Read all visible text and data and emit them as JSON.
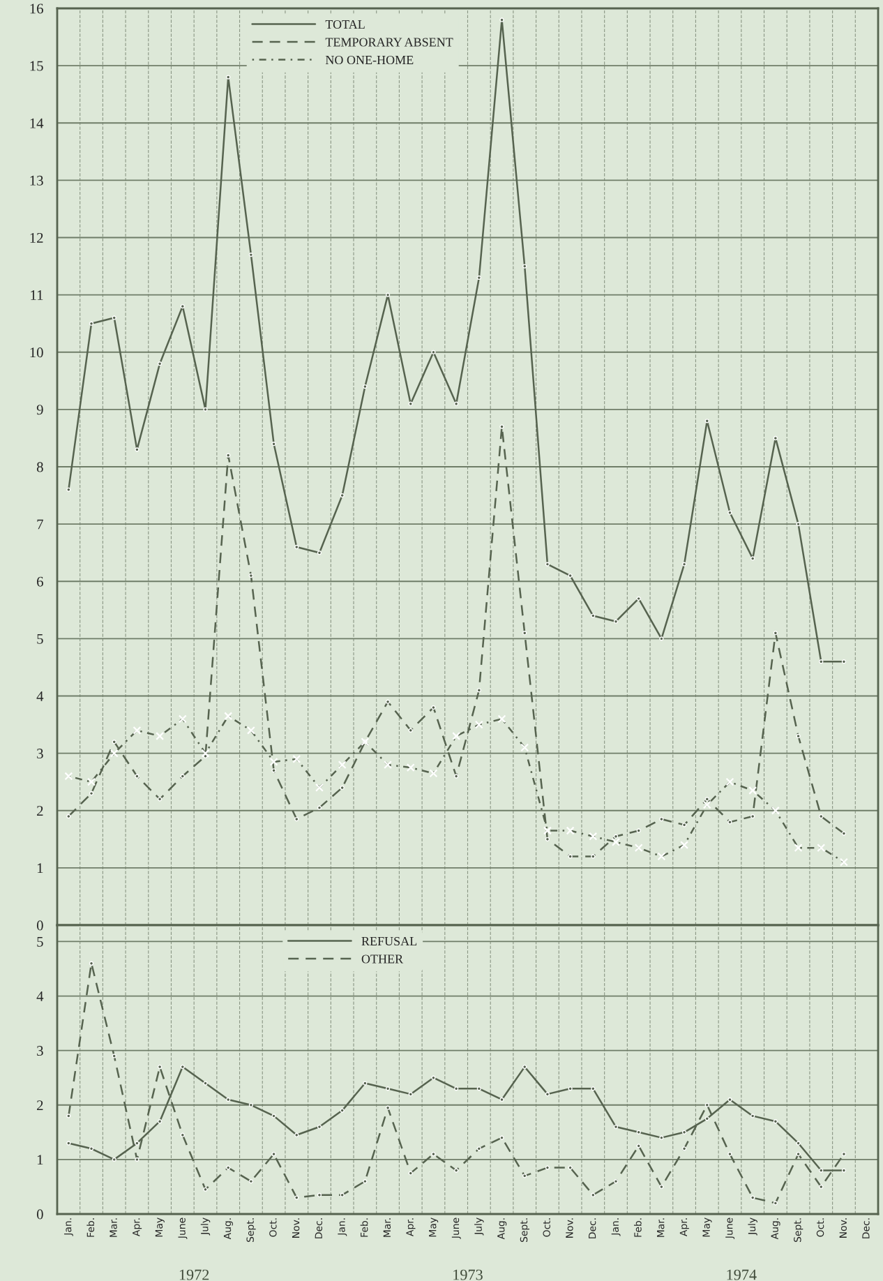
{
  "chart_data": [
    {
      "type": "line",
      "categories": [
        null,
        null,
        null,
        null,
        null,
        null,
        null,
        null,
        null,
        null,
        null,
        null,
        null,
        null,
        null,
        null,
        null,
        null,
        null,
        null,
        null,
        null,
        null,
        null,
        null,
        null,
        null,
        null,
        null,
        null,
        null,
        null,
        null,
        null,
        null,
        null
      ],
      "series": [
        {
          "name": "TOTAL",
          "color": "#56634f",
          "line_style": "solid",
          "marker": "circle",
          "values": [
            7.6,
            10.5,
            10.6,
            8.3,
            9.8,
            10.8,
            9.0,
            14.8,
            11.7,
            8.4,
            6.6,
            6.5,
            7.5,
            9.4,
            11.0,
            9.1,
            10.0,
            9.1,
            11.3,
            15.8,
            11.5,
            6.3,
            6.1,
            5.4,
            5.3,
            5.7,
            5.0,
            6.3,
            8.8,
            7.2,
            6.4,
            8.5,
            7.0,
            4.6,
            4.6,
            null
          ]
        },
        {
          "name": "TEMPORARY ABSENT",
          "color": "#56634f",
          "line_style": "dashed",
          "marker": "circle",
          "values": [
            1.9,
            2.3,
            3.2,
            2.6,
            2.2,
            2.6,
            2.95,
            8.2,
            6.1,
            2.7,
            1.85,
            2.05,
            2.4,
            3.2,
            3.9,
            3.4,
            3.8,
            2.6,
            4.1,
            8.7,
            5.1,
            1.5,
            1.2,
            1.2,
            1.55,
            1.65,
            1.85,
            1.75,
            2.2,
            1.8,
            1.9,
            5.1,
            3.3,
            1.9,
            1.6,
            null
          ]
        },
        {
          "name": "NO ONE-HOME",
          "color": "#56634f",
          "line_style": "dotted",
          "marker": "cross",
          "values": [
            2.6,
            2.5,
            3.0,
            3.4,
            3.3,
            3.6,
            3.0,
            3.65,
            3.4,
            2.85,
            2.9,
            2.4,
            2.8,
            3.2,
            2.8,
            2.75,
            2.65,
            3.3,
            3.5,
            3.6,
            3.1,
            1.65,
            1.65,
            1.55,
            1.45,
            1.35,
            1.2,
            1.4,
            2.1,
            2.5,
            2.35,
            2.0,
            1.35,
            1.35,
            1.1,
            null
          ]
        }
      ],
      "ylim": [
        0,
        16
      ],
      "yticks": [
        0,
        1,
        2,
        3,
        4,
        5,
        6,
        7,
        8,
        9,
        10,
        11,
        12,
        13,
        14,
        15,
        16
      ],
      "grid": true,
      "legend": "top",
      "tick_labels": "y"
    },
    {
      "type": "line",
      "categories": [
        "Jan.",
        "Feb.",
        "Mar.",
        "Apr.",
        "May",
        "June",
        "July",
        "Aug.",
        "Sept.",
        "Oct.",
        "Nov.",
        "Dec.",
        "Jan.",
        "Feb.",
        "Mar.",
        "Apr.",
        "May",
        "June",
        "July",
        "Aug.",
        "Sept.",
        "Oct.",
        "Nov.",
        "Dec.",
        "Jan.",
        "Feb.",
        "Mar.",
        "Apr.",
        "May",
        "June",
        "July",
        "Aug.",
        "Sept.",
        "Oct.",
        "Nov.",
        "Dec."
      ],
      "series": [
        {
          "name": "REFUSAL",
          "color": "#56634f",
          "line_style": "solid",
          "marker": "circle",
          "values": [
            1.3,
            1.2,
            1.0,
            1.3,
            1.7,
            2.7,
            2.4,
            2.1,
            2.0,
            1.8,
            1.45,
            1.6,
            1.9,
            2.4,
            2.3,
            2.2,
            2.5,
            2.3,
            2.3,
            2.1,
            2.7,
            2.2,
            2.3,
            2.3,
            1.6,
            1.5,
            1.4,
            1.5,
            1.75,
            2.1,
            1.8,
            1.7,
            1.3,
            0.8,
            0.8,
            null
          ]
        },
        {
          "name": "OTHER",
          "color": "#56634f",
          "line_style": "dashed",
          "marker": "circle",
          "values": [
            1.8,
            4.6,
            2.9,
            1.0,
            2.7,
            1.45,
            0.45,
            0.85,
            0.6,
            1.1,
            0.3,
            0.35,
            0.35,
            0.6,
            1.95,
            0.75,
            1.1,
            0.8,
            1.2,
            1.4,
            0.7,
            0.85,
            0.85,
            0.35,
            0.6,
            1.25,
            0.5,
            1.2,
            2.0,
            1.1,
            0.3,
            0.2,
            1.1,
            0.5,
            1.1,
            null
          ]
        }
      ],
      "ylim": [
        0,
        5.3
      ],
      "yticks": [
        0,
        1,
        2,
        3,
        4,
        5
      ],
      "grid": true,
      "legend": "top",
      "annotations": [
        "1972",
        "1973",
        "1974"
      ]
    }
  ]
}
